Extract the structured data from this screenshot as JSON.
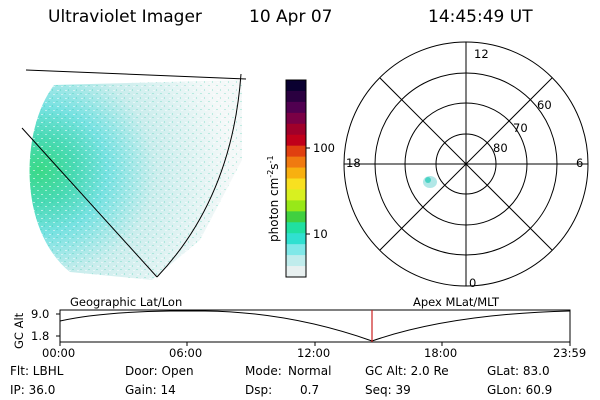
{
  "header": {
    "instrument": "Ultraviolet Imager",
    "date": "10 Apr 07",
    "time": "14:45:49 UT"
  },
  "colorbar": {
    "label_html": "photon cm",
    "sup1": "-2",
    "mid": "s",
    "sup2": "-1",
    "ticks": [
      "100",
      "10"
    ],
    "colors": [
      "#0a0030",
      "#2a0040",
      "#500050",
      "#7a0045",
      "#a0002a",
      "#c0001a",
      "#e04010",
      "#f07a10",
      "#f8b010",
      "#f8e020",
      "#d8f020",
      "#98e818",
      "#40d040",
      "#20e0a0",
      "#30e0d0",
      "#80e8e8",
      "#c0ecec",
      "#e8f0f0"
    ]
  },
  "polar": {
    "mlt_labels": [
      "12",
      "18",
      "6",
      "0"
    ],
    "lat_labels": [
      "60",
      "70",
      "80"
    ]
  },
  "timeline": {
    "y_label": "GC Alt",
    "y_ticks": [
      "9.0",
      "1.8"
    ],
    "left_title": "Geographic Lat/Lon",
    "right_title": "Apex MLat/MLT",
    "x_ticks": [
      "00:00",
      "06:00",
      "12:00",
      "18:00",
      "23:59"
    ],
    "marker_color": "#cc2020"
  },
  "info": {
    "row1": {
      "flt": "Flt: LBHL",
      "door": "Door: Open",
      "mode_label": "Mode:",
      "mode_value": "Normal",
      "gc_alt": "GC Alt: 2.0 Re",
      "glat": "GLat:  83.0"
    },
    "row2": {
      "ip": "IP: 36.0",
      "gain": "Gain: 14",
      "dsp_label": "Dsp:",
      "dsp_value": "0.7",
      "seq": "Seq: 39",
      "glon": "GLon:  60.9"
    }
  }
}
